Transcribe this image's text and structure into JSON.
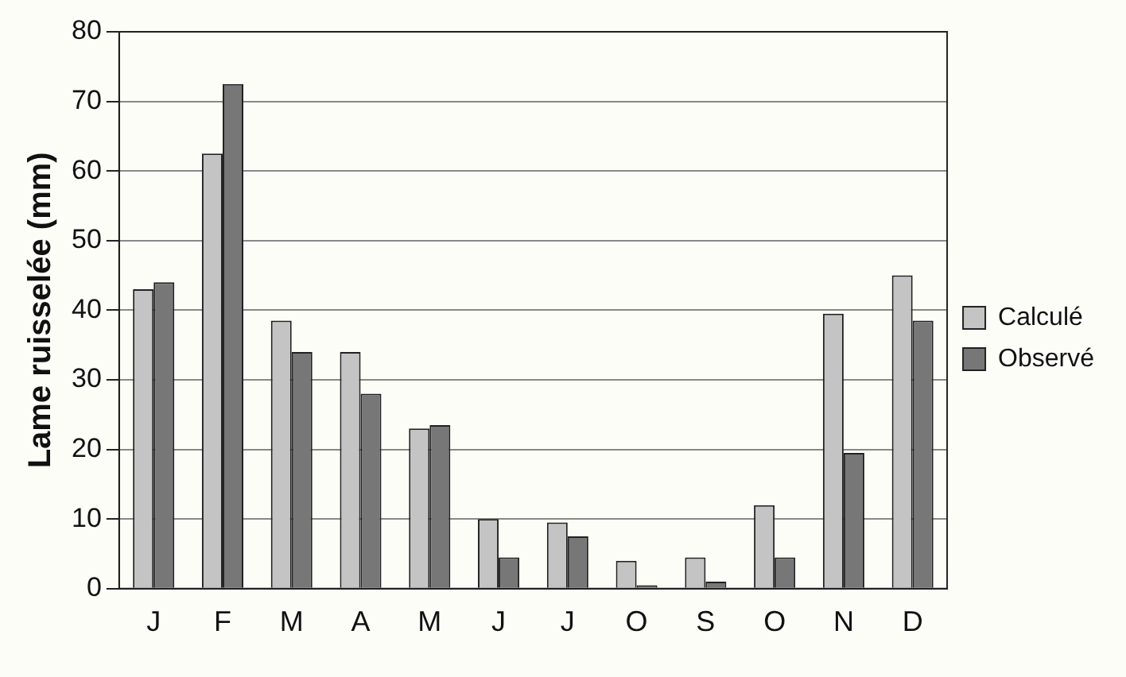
{
  "chart_data": {
    "type": "bar",
    "ylabel": "Lame ruisselée (mm)",
    "categories": [
      "J",
      "F",
      "M",
      "A",
      "M",
      "J",
      "J",
      "O",
      "S",
      "O",
      "N",
      "D"
    ],
    "series": [
      {
        "name": "Calculé",
        "color": "#c4c4c4",
        "values": [
          43,
          62.5,
          38.5,
          34,
          23,
          10,
          9.5,
          4,
          4.5,
          12,
          39.5,
          45
        ]
      },
      {
        "name": "Observé",
        "color": "#777777",
        "values": [
          44,
          72.5,
          34,
          28,
          23.5,
          4.5,
          7.5,
          0.5,
          1,
          4.5,
          19.5,
          38.5
        ]
      }
    ],
    "ylim": [
      0,
      80
    ],
    "yticks": [
      0,
      10,
      20,
      30,
      40,
      50,
      60,
      70,
      80
    ],
    "grid": "y",
    "legend": "right"
  }
}
